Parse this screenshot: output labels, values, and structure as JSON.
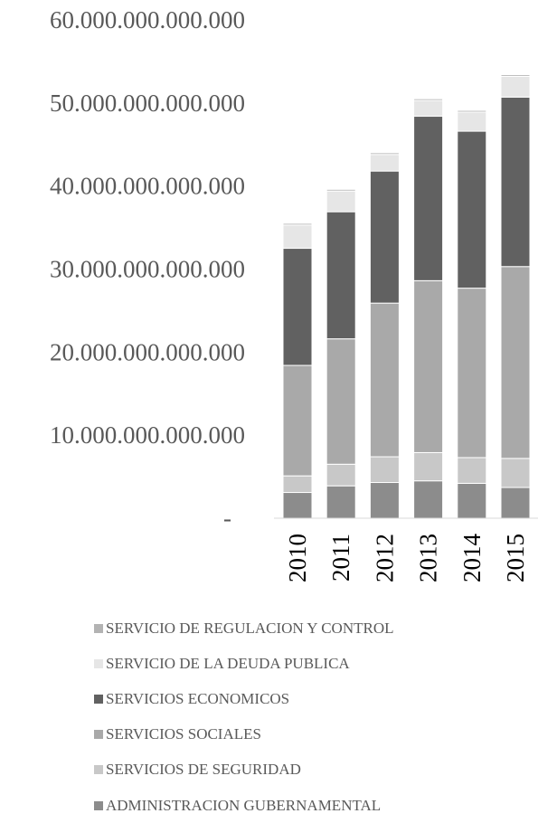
{
  "chart_data": {
    "type": "bar",
    "stacked": true,
    "categories": [
      "2010",
      "2011",
      "2012",
      "2013",
      "2014",
      "2015"
    ],
    "ylim": [
      0,
      60000000000000
    ],
    "y_ticks": [
      {
        "value": 0,
        "label": "-"
      },
      {
        "value": 10000000000000,
        "label": "10.000.000.000.000"
      },
      {
        "value": 20000000000000,
        "label": "20.000.000.000.000"
      },
      {
        "value": 30000000000000,
        "label": "30.000.000.000.000"
      },
      {
        "value": 40000000000000,
        "label": "40.000.000.000.000"
      },
      {
        "value": 50000000000000,
        "label": "50.000.000.000.000"
      },
      {
        "value": 60000000000000,
        "label": "60.000.000.000.000"
      }
    ],
    "series": [
      {
        "name": "ADMINISTRACION GUBERNAMENTAL",
        "color": "#8c8c8c",
        "values": [
          3100000000000,
          3900000000000,
          4300000000000,
          4500000000000,
          4200000000000,
          3700000000000
        ]
      },
      {
        "name": "SERVICIOS DE SEGURIDAD",
        "color": "#c8c8c8",
        "values": [
          2000000000000,
          2600000000000,
          3100000000000,
          3400000000000,
          3100000000000,
          3500000000000
        ]
      },
      {
        "name": "SERVICIOS SOCIALES",
        "color": "#a9a9a9",
        "values": [
          13300000000000,
          15100000000000,
          18500000000000,
          20700000000000,
          20400000000000,
          23100000000000
        ]
      },
      {
        "name": "SERVICIOS ECONOMICOS",
        "color": "#616161",
        "values": [
          14100000000000,
          15300000000000,
          15900000000000,
          19800000000000,
          18900000000000,
          20400000000000
        ]
      },
      {
        "name": " SERVICIO DE LA DEUDA PUBLICA",
        "color": "#e6e6e6",
        "values": [
          2800000000000,
          2500000000000,
          2000000000000,
          1900000000000,
          2300000000000,
          2500000000000
        ]
      },
      {
        "name": "SERVICIO DE REGULACION Y CONTROL",
        "color": "#b3b3b3",
        "values": [
          200000000000,
          200000000000,
          200000000000,
          200000000000,
          200000000000,
          200000000000
        ]
      }
    ],
    "legend_position": "bottom",
    "grid": false
  }
}
